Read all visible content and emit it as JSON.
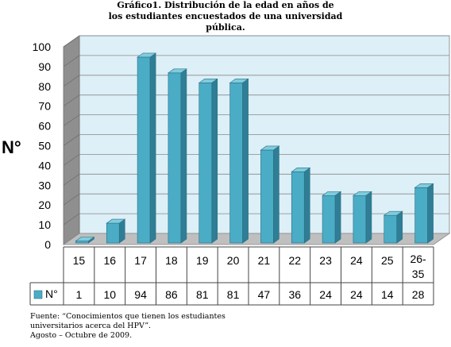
{
  "chart_data": {
    "type": "bar",
    "title": "Gráfico1. Distribución de la edad en años de\nlos estudiantes encuestados de una universidad\npública.",
    "ylabel": "N°",
    "xlabel": "",
    "categories": [
      "15",
      "16",
      "17",
      "18",
      "19",
      "20",
      "21",
      "22",
      "23",
      "24",
      "25",
      "26-35"
    ],
    "series": [
      {
        "name": "N°",
        "values": [
          1,
          10,
          94,
          86,
          81,
          81,
          47,
          36,
          24,
          24,
          14,
          28
        ]
      }
    ],
    "ylim": [
      0,
      100
    ],
    "yticks": [
      "0",
      "10",
      "20",
      "30",
      "40",
      "50",
      "60",
      "70",
      "80",
      "90",
      "100"
    ],
    "grid": true,
    "legend": "data-table",
    "colors": {
      "bar_front": "#4BACC6",
      "bar_side": "#2F7E95",
      "bar_top": "#7FCCDD",
      "wall": "#DDEFF7",
      "floor": "#BFBFBF"
    }
  },
  "footer": {
    "source": "Fuente:   “Conocimientos   que   tienen   los   estudiantes universitarios acerca del HPV”.",
    "date": "Agosto – Octubre de 2009."
  }
}
